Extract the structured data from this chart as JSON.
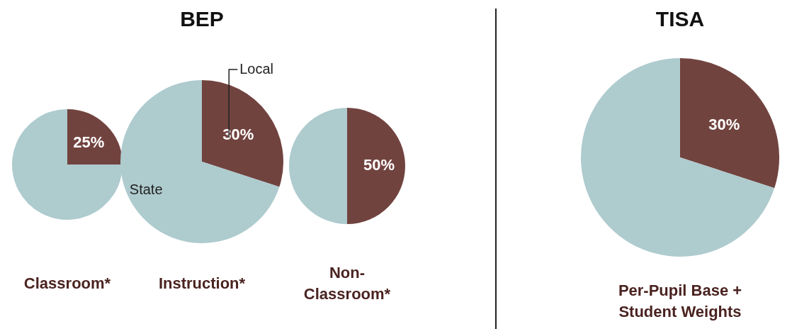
{
  "chart_data": [
    {
      "type": "pie",
      "xlabel": "Classroom*",
      "categories": [
        null,
        null
      ],
      "values": [
        25,
        75
      ],
      "colors": [
        "#71433f",
        "#aecbce"
      ],
      "value_labels": [
        "25%",
        null
      ]
    },
    {
      "type": "pie",
      "title": "BEP",
      "xlabel": "Instruction*",
      "categories": [
        "Local",
        "State"
      ],
      "values": [
        30,
        70
      ],
      "colors": [
        "#71433f",
        "#aecbce"
      ],
      "value_labels": [
        "30%",
        null
      ]
    },
    {
      "type": "pie",
      "xlabel": "Non-Classroom*",
      "categories": [
        null,
        null
      ],
      "values": [
        50,
        50
      ],
      "colors": [
        "#71433f",
        "#aecbce"
      ],
      "value_labels": [
        "50%",
        null
      ]
    },
    {
      "type": "pie",
      "title": "TISA",
      "xlabel": "Per-Pupil Base + Student Weights",
      "categories": [
        null,
        null
      ],
      "values": [
        30,
        70
      ],
      "colors": [
        "#71433f",
        "#aecbce"
      ],
      "value_labels": [
        "30%",
        null
      ]
    }
  ]
}
